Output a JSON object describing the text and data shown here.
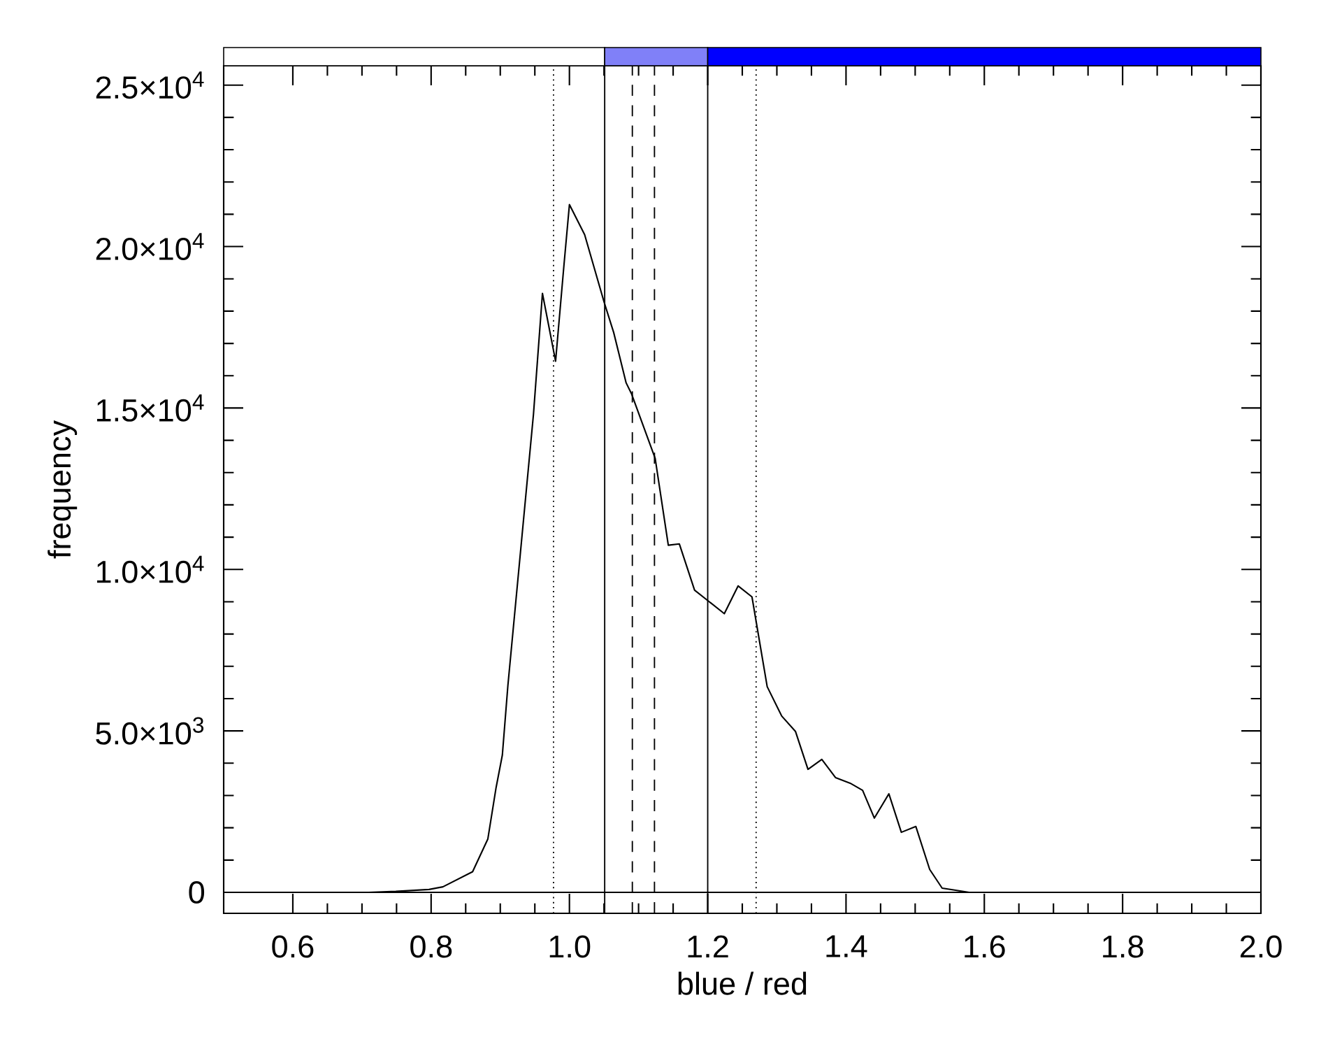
{
  "chart_data": {
    "type": "line",
    "xlabel": "blue / red",
    "ylabel": "frequency",
    "xlim": [
      0.5,
      2.0
    ],
    "ylim": [
      -650,
      25600
    ],
    "xticks": [
      {
        "value": 0.6,
        "label": "0.6"
      },
      {
        "value": 0.8,
        "label": "0.8"
      },
      {
        "value": 1.0,
        "label": "1.0"
      },
      {
        "value": 1.2,
        "label": "1.2"
      },
      {
        "value": 1.4,
        "label": "1.4"
      },
      {
        "value": 1.6,
        "label": "1.6"
      },
      {
        "value": 1.8,
        "label": "1.8"
      },
      {
        "value": 2.0,
        "label": "2.0"
      }
    ],
    "yticks": [
      {
        "value": 0,
        "label": "0"
      },
      {
        "value": 5000,
        "label": "5.0×10$^{3}$"
      },
      {
        "value": 10000,
        "label": "1.0×10$^{4}$"
      },
      {
        "value": 15000,
        "label": "1.5×10$^{4}$"
      },
      {
        "value": 20000,
        "label": "2.0×10$^{4}$"
      },
      {
        "value": 25000,
        "label": "2.5×10$^{4}$"
      }
    ],
    "series": [
      {
        "color": "#000000",
        "x": [
          0.71,
          0.749,
          0.797,
          0.817,
          0.86,
          0.882,
          0.894,
          0.903,
          0.911,
          0.948,
          0.961,
          0.98,
          0.992,
          1.0,
          1.022,
          1.05,
          1.064,
          1.082,
          1.09,
          1.124,
          1.143,
          1.159,
          1.181,
          1.201,
          1.224,
          1.244,
          1.264,
          1.286,
          1.307,
          1.327,
          1.345,
          1.365,
          1.385,
          1.406,
          1.424,
          1.441,
          1.462,
          1.48,
          1.501,
          1.521,
          1.539,
          1.578,
          1.608
        ],
        "values": [
          0,
          30,
          90,
          170,
          640,
          1650,
          3250,
          4250,
          6400,
          14800,
          18550,
          16450,
          19400,
          21300,
          20370,
          18290,
          17340,
          15780,
          15430,
          13440,
          10750,
          10790,
          9360,
          9020,
          8630,
          9490,
          9150,
          6370,
          5460,
          4980,
          3810,
          4120,
          3550,
          3380,
          3160,
          2300,
          3050,
          1860,
          2040,
          710,
          130,
          0,
          0
        ]
      }
    ],
    "ref_lines": [
      {
        "axis": "x",
        "value": 0.977,
        "color": "#000000",
        "line_style": "dotted"
      },
      {
        "axis": "x",
        "value": 1.051,
        "color": "#000000",
        "line_style": "solid"
      },
      {
        "axis": "x",
        "value": 1.091,
        "color": "#000000",
        "line_style": "dashed"
      },
      {
        "axis": "x",
        "value": 1.123,
        "color": "#000000",
        "line_style": "dashed"
      },
      {
        "axis": "x",
        "value": 1.2,
        "color": "#000000",
        "line_style": "solid"
      },
      {
        "axis": "x",
        "value": 1.27,
        "color": "#000000",
        "line_style": "dotted"
      }
    ]
  }
}
